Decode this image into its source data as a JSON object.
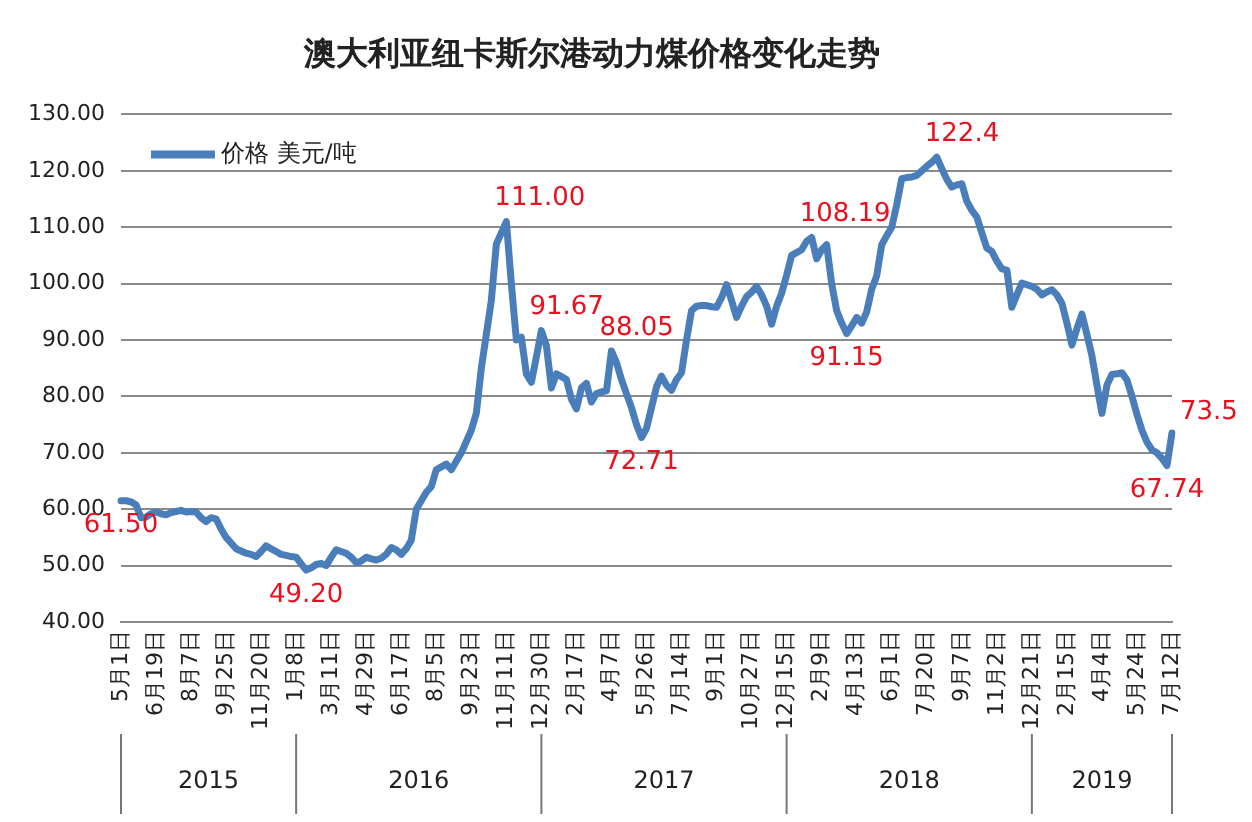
{
  "chart_data": {
    "type": "line",
    "title": "澳大利亚纽卡斯尔港动力煤价格变化走势",
    "categories": [
      "5月1日",
      null,
      null,
      null,
      null,
      null,
      null,
      "6月19日",
      null,
      null,
      null,
      null,
      null,
      null,
      "8月7日",
      null,
      null,
      null,
      null,
      null,
      null,
      "9月25日",
      null,
      null,
      null,
      null,
      null,
      null,
      "11月20日",
      null,
      null,
      null,
      null,
      null,
      null,
      "1月8日",
      null,
      null,
      null,
      null,
      null,
      null,
      "3月11日",
      null,
      null,
      null,
      null,
      null,
      null,
      "4月29日",
      null,
      null,
      null,
      null,
      null,
      null,
      "6月17日",
      null,
      null,
      null,
      null,
      null,
      null,
      "8月5日",
      null,
      null,
      null,
      null,
      null,
      null,
      "9月23日",
      null,
      null,
      null,
      null,
      null,
      null,
      "11月11日",
      null,
      null,
      null,
      null,
      null,
      null,
      "12月30日",
      null,
      null,
      null,
      null,
      null,
      null,
      "2月17日",
      null,
      null,
      null,
      null,
      null,
      null,
      "4月7日",
      null,
      null,
      null,
      null,
      null,
      null,
      "5月26日",
      null,
      null,
      null,
      null,
      null,
      null,
      "7月14日",
      null,
      null,
      null,
      null,
      null,
      null,
      "9月1日",
      null,
      null,
      null,
      null,
      null,
      null,
      "10月27日",
      null,
      null,
      null,
      null,
      null,
      null,
      "12月15日",
      null,
      null,
      null,
      null,
      null,
      null,
      "2月9日",
      null,
      null,
      null,
      null,
      null,
      null,
      "4月13日",
      null,
      null,
      null,
      null,
      null,
      null,
      "6月1日",
      null,
      null,
      null,
      null,
      null,
      null,
      "7月20日",
      null,
      null,
      null,
      null,
      null,
      null,
      "9月7日",
      null,
      null,
      null,
      null,
      null,
      null,
      "11月2日",
      null,
      null,
      null,
      null,
      null,
      null,
      "12月21日",
      null,
      null,
      null,
      null,
      null,
      null,
      "2月15日",
      null,
      null,
      null,
      null,
      null,
      null,
      "4月4日",
      null,
      null,
      null,
      null,
      null,
      null,
      "5月24日",
      null,
      null,
      null,
      null,
      null,
      null,
      "7月12日"
    ],
    "series": [
      {
        "name": "价格 美元/吨",
        "color": "#4a7ebb",
        "values": [
          61.5,
          61.5,
          61.3,
          60.8,
          58.5,
          58.6,
          59.2,
          59.5,
          59.2,
          59,
          59.4,
          59.6,
          59.8,
          59.5,
          59.6,
          59.5,
          58.5,
          57.8,
          58.5,
          58.3,
          56.5,
          55,
          54,
          53,
          52.6,
          52.2,
          52,
          51.6,
          52.5,
          53.5,
          53,
          52.5,
          52,
          51.8,
          51.6,
          51.5,
          50.3,
          49.2,
          49.6,
          50.2,
          50.4,
          50,
          51.5,
          52.8,
          52.5,
          52.2,
          51.5,
          50.5,
          50.8,
          51.5,
          51.2,
          51,
          51.3,
          52,
          53.2,
          52.8,
          52,
          53,
          54.5,
          60,
          61.5,
          63,
          64,
          67,
          67.5,
          68,
          67,
          68.5,
          70,
          72,
          74,
          77,
          85,
          91,
          97,
          107,
          109,
          111,
          100,
          90,
          90.5,
          84,
          82.5,
          87,
          91.67,
          89,
          81.5,
          84,
          83.5,
          83,
          79.5,
          77.8,
          81.5,
          82.3,
          79,
          80.5,
          80.8,
          81,
          88.05,
          86,
          83,
          80.5,
          78,
          75,
          72.71,
          74.3,
          78,
          81.7,
          83.6,
          82,
          81.1,
          83,
          84.2,
          90,
          95.2,
          96,
          96.1,
          96.1,
          95.9,
          95.8,
          97.5,
          99.8,
          97,
          94,
          96,
          97.7,
          98.5,
          99.5,
          98,
          96,
          92.8,
          96,
          98.3,
          101.5,
          105,
          105.5,
          106,
          107.5,
          108.19,
          104.4,
          106,
          106.9,
          100,
          95.2,
          93,
          91.15,
          92.5,
          94,
          93,
          95,
          99,
          101.4,
          106.9,
          108.5,
          110,
          114,
          118.6,
          118.8,
          118.9,
          119.2,
          120,
          120.8,
          121.5,
          122.4,
          120.4,
          118.5,
          117.1,
          117.5,
          117.7,
          114.6,
          113,
          111.8,
          109,
          106.3,
          105.7,
          104,
          102.6,
          102.4,
          95.8,
          98,
          100.1,
          99.8,
          99.5,
          99,
          98,
          98.5,
          98.9,
          98,
          96.5,
          93,
          89.1,
          92,
          94.6,
          91,
          87.2,
          82,
          77,
          82,
          83.9,
          84,
          84.2,
          82.9,
          80,
          76.8,
          74,
          71.9,
          70.5,
          70,
          69,
          67.74,
          73.5
        ],
        "value_labels": [
          "61.50",
          null,
          null,
          null,
          null,
          null,
          null,
          null,
          null,
          null,
          null,
          null,
          null,
          null,
          null,
          null,
          null,
          null,
          null,
          null,
          null,
          null,
          null,
          null,
          null,
          null,
          null,
          null,
          null,
          null,
          null,
          null,
          null,
          null,
          null,
          null,
          null,
          "49.20",
          null,
          null,
          null,
          null,
          null,
          null,
          null,
          null,
          null,
          null,
          null,
          null,
          null,
          null,
          null,
          null,
          null,
          null,
          null,
          null,
          null,
          null,
          null,
          null,
          null,
          null,
          null,
          null,
          null,
          null,
          null,
          null,
          null,
          null,
          null,
          null,
          null,
          null,
          null,
          "111.00",
          null,
          null,
          null,
          null,
          null,
          null,
          "91.67",
          null,
          null,
          null,
          null,
          null,
          null,
          null,
          null,
          null,
          null,
          null,
          null,
          null,
          "88.05",
          null,
          null,
          null,
          null,
          null,
          "72.71",
          null,
          null,
          null,
          null,
          null,
          null,
          null,
          null,
          null,
          null,
          null,
          null,
          null,
          null,
          null,
          null,
          null,
          null,
          null,
          null,
          null,
          null,
          null,
          null,
          null,
          null,
          null,
          null,
          null,
          null,
          null,
          null,
          null,
          "108.19",
          null,
          null,
          null,
          null,
          null,
          null,
          "91.15",
          null,
          null,
          null,
          null,
          null,
          null,
          null,
          null,
          null,
          null,
          null,
          null,
          null,
          null,
          null,
          null,
          null,
          "122.4",
          null,
          null,
          null,
          null,
          null,
          null,
          null,
          null,
          null,
          null,
          null,
          null,
          null,
          null,
          null,
          null,
          null,
          null,
          null,
          null,
          null,
          null,
          null,
          null,
          null,
          null,
          null,
          null,
          null,
          null,
          null,
          null,
          null,
          null,
          null,
          null,
          null,
          null,
          null,
          null,
          null,
          null,
          null,
          null,
          null,
          "67.74",
          "73.5"
        ]
      }
    ],
    "ylim": [
      40,
      130
    ],
    "yticks": [
      {
        "value": 40,
        "label": "40.00"
      },
      {
        "value": 50,
        "label": "50.00"
      },
      {
        "value": 60,
        "label": "60.00"
      },
      {
        "value": 70,
        "label": "70.00"
      },
      {
        "value": 80,
        "label": "80.00"
      },
      {
        "value": 90,
        "label": "90.00"
      },
      {
        "value": 100,
        "label": "100.00"
      },
      {
        "value": 110,
        "label": "110.00"
      },
      {
        "value": 120,
        "label": "120.00"
      },
      {
        "value": 130,
        "label": "130.00"
      }
    ],
    "annotations": [
      "2015",
      "2016",
      "2017",
      "2018",
      "2019"
    ],
    "grid": "y",
    "legend": "top left",
    "marker": "none",
    "line_style": "solid"
  }
}
